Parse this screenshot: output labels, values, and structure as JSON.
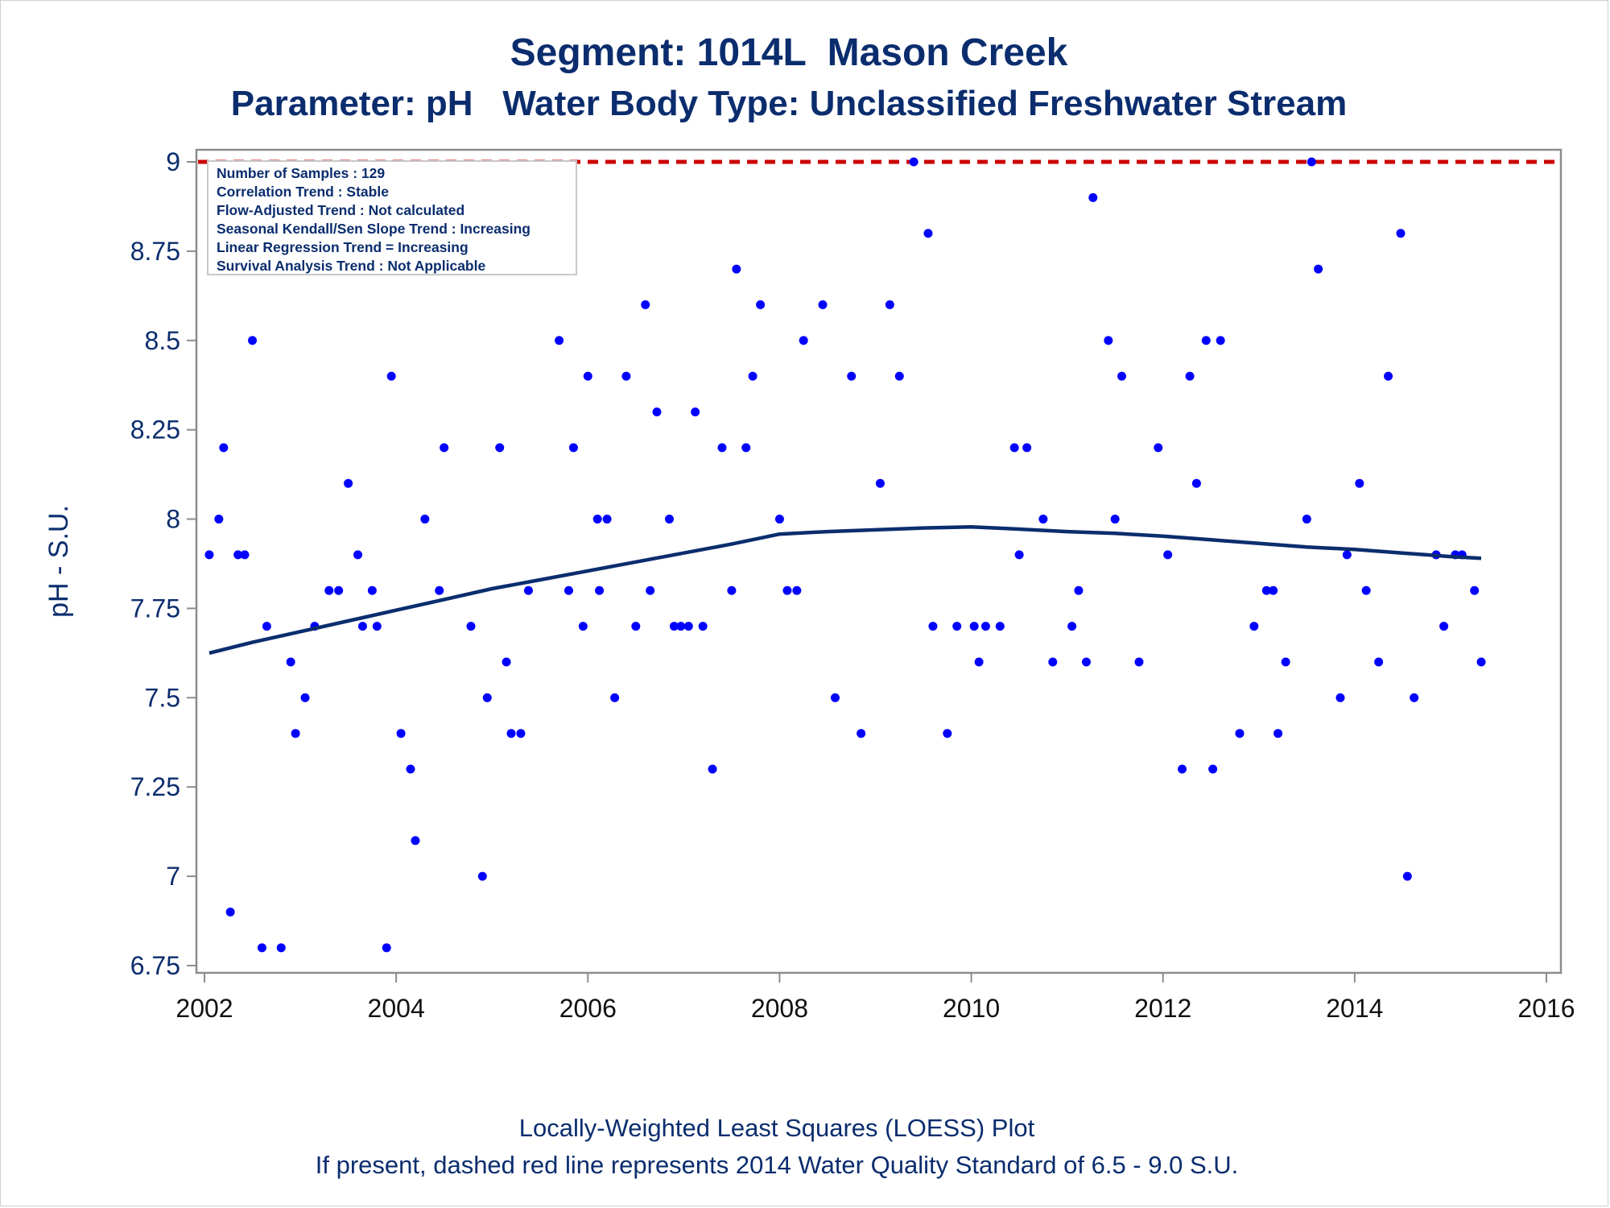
{
  "title": "Segment: 1014L  Mason Creek",
  "subtitle": "Parameter: pH   Water Body Type: Unclassified Freshwater Stream",
  "footnotes": [
    "Locally-Weighted Least Squares (LOESS) Plot",
    "If present, dashed red line represents 2014 Water Quality Standard of 6.5 - 9.0 S.U."
  ],
  "stats_box": [
    "Number of Samples : 129",
    "Correlation Trend : Stable",
    "Flow-Adjusted Trend : Not calculated",
    "Seasonal Kendall/Sen Slope Trend : Increasing",
    "Linear Regression Trend = Increasing",
    "Survival Analysis Trend : Not Applicable"
  ],
  "colors": {
    "points": "#0000ff",
    "loess": "#0b2d6e",
    "standard_line": "#cc0000",
    "text": "#0b2d6e",
    "axis": "#8c8c8c"
  },
  "chart_data": {
    "type": "scatter",
    "xlabel": "",
    "ylabel": "pH - S.U.",
    "xlim": [
      2002,
      2016
    ],
    "ylim": [
      6.75,
      9.0
    ],
    "xticks": [
      "2002",
      "2004",
      "2006",
      "2008",
      "2010",
      "2012",
      "2014",
      "2016"
    ],
    "yticks": [
      "6.75",
      "7",
      "7.25",
      "7.5",
      "7.75",
      "8",
      "8.25",
      "8.5",
      "8.75",
      "9"
    ],
    "grid": false,
    "standard_line": {
      "y": 9.0,
      "style": "dashed"
    },
    "series": [
      {
        "type": "scatter",
        "points": [
          [
            2002.05,
            7.9
          ],
          [
            2002.15,
            8.0
          ],
          [
            2002.2,
            8.2
          ],
          [
            2002.27,
            6.9
          ],
          [
            2002.35,
            7.9
          ],
          [
            2002.42,
            7.9
          ],
          [
            2002.5,
            8.5
          ],
          [
            2002.6,
            6.8
          ],
          [
            2002.65,
            7.7
          ],
          [
            2002.8,
            6.8
          ],
          [
            2002.9,
            7.6
          ],
          [
            2002.95,
            7.4
          ],
          [
            2003.05,
            7.5
          ],
          [
            2003.15,
            7.7
          ],
          [
            2003.3,
            7.8
          ],
          [
            2003.4,
            7.8
          ],
          [
            2003.5,
            8.1
          ],
          [
            2003.6,
            7.9
          ],
          [
            2003.65,
            7.7
          ],
          [
            2003.75,
            7.8
          ],
          [
            2003.8,
            7.7
          ],
          [
            2003.9,
            6.8
          ],
          [
            2003.95,
            8.4
          ],
          [
            2004.05,
            7.4
          ],
          [
            2004.15,
            7.3
          ],
          [
            2004.2,
            7.1
          ],
          [
            2004.3,
            8.0
          ],
          [
            2004.45,
            7.8
          ],
          [
            2004.5,
            8.2
          ],
          [
            2004.78,
            7.7
          ],
          [
            2004.9,
            7.0
          ],
          [
            2004.95,
            7.5
          ],
          [
            2005.08,
            8.2
          ],
          [
            2005.15,
            7.6
          ],
          [
            2005.2,
            7.4
          ],
          [
            2005.3,
            7.4
          ],
          [
            2005.38,
            7.8
          ],
          [
            2005.7,
            8.5
          ],
          [
            2005.8,
            7.8
          ],
          [
            2005.85,
            8.2
          ],
          [
            2005.95,
            7.7
          ],
          [
            2006.0,
            8.4
          ],
          [
            2006.1,
            8.0
          ],
          [
            2006.12,
            7.8
          ],
          [
            2006.2,
            8.0
          ],
          [
            2006.28,
            7.5
          ],
          [
            2006.4,
            8.4
          ],
          [
            2006.5,
            7.7
          ],
          [
            2006.6,
            8.6
          ],
          [
            2006.65,
            7.8
          ],
          [
            2006.72,
            8.3
          ],
          [
            2006.85,
            8.0
          ],
          [
            2006.9,
            7.7
          ],
          [
            2006.97,
            7.7
          ],
          [
            2007.05,
            7.7
          ],
          [
            2007.12,
            8.3
          ],
          [
            2007.2,
            7.7
          ],
          [
            2007.3,
            7.3
          ],
          [
            2007.4,
            8.2
          ],
          [
            2007.5,
            7.8
          ],
          [
            2007.55,
            8.7
          ],
          [
            2007.65,
            8.2
          ],
          [
            2007.72,
            8.4
          ],
          [
            2007.8,
            8.6
          ],
          [
            2008.0,
            8.0
          ],
          [
            2008.08,
            7.8
          ],
          [
            2008.18,
            7.8
          ],
          [
            2008.25,
            8.5
          ],
          [
            2008.45,
            8.6
          ],
          [
            2008.58,
            7.5
          ],
          [
            2008.75,
            8.4
          ],
          [
            2008.85,
            7.4
          ],
          [
            2009.05,
            8.1
          ],
          [
            2009.15,
            8.6
          ],
          [
            2009.25,
            8.4
          ],
          [
            2009.4,
            9.0
          ],
          [
            2009.55,
            8.8
          ],
          [
            2009.6,
            7.7
          ],
          [
            2009.75,
            7.4
          ],
          [
            2009.85,
            7.7
          ],
          [
            2010.03,
            7.7
          ],
          [
            2010.08,
            7.6
          ],
          [
            2010.15,
            7.7
          ],
          [
            2010.3,
            7.7
          ],
          [
            2010.45,
            8.2
          ],
          [
            2010.5,
            7.9
          ],
          [
            2010.58,
            8.2
          ],
          [
            2010.75,
            8.0
          ],
          [
            2010.85,
            7.6
          ],
          [
            2011.05,
            7.7
          ],
          [
            2011.12,
            7.8
          ],
          [
            2011.2,
            7.6
          ],
          [
            2011.27,
            8.9
          ],
          [
            2011.43,
            8.5
          ],
          [
            2011.5,
            8.0
          ],
          [
            2011.57,
            8.4
          ],
          [
            2011.75,
            7.6
          ],
          [
            2011.95,
            8.2
          ],
          [
            2012.05,
            7.9
          ],
          [
            2012.2,
            7.3
          ],
          [
            2012.28,
            8.4
          ],
          [
            2012.35,
            8.1
          ],
          [
            2012.45,
            8.5
          ],
          [
            2012.52,
            7.3
          ],
          [
            2012.6,
            8.5
          ],
          [
            2012.8,
            7.4
          ],
          [
            2012.95,
            7.7
          ],
          [
            2013.08,
            7.8
          ],
          [
            2013.15,
            7.8
          ],
          [
            2013.2,
            7.4
          ],
          [
            2013.28,
            7.6
          ],
          [
            2013.5,
            8.0
          ],
          [
            2013.55,
            9.0
          ],
          [
            2013.62,
            8.7
          ],
          [
            2013.85,
            7.5
          ],
          [
            2013.92,
            7.9
          ],
          [
            2014.05,
            8.1
          ],
          [
            2014.12,
            7.8
          ],
          [
            2014.25,
            7.6
          ],
          [
            2014.35,
            8.4
          ],
          [
            2014.48,
            8.8
          ],
          [
            2014.55,
            7.0
          ],
          [
            2014.62,
            7.5
          ],
          [
            2014.85,
            7.9
          ],
          [
            2014.93,
            7.7
          ],
          [
            2015.05,
            7.9
          ],
          [
            2015.12,
            7.9
          ],
          [
            2015.25,
            7.8
          ],
          [
            2015.32,
            7.6
          ]
        ]
      },
      {
        "type": "line",
        "points": [
          [
            2002.05,
            7.625
          ],
          [
            2002.5,
            7.655
          ],
          [
            2003.0,
            7.685
          ],
          [
            2003.5,
            7.715
          ],
          [
            2004.0,
            7.745
          ],
          [
            2004.5,
            7.775
          ],
          [
            2005.0,
            7.805
          ],
          [
            2005.5,
            7.83
          ],
          [
            2006.0,
            7.855
          ],
          [
            2006.5,
            7.88
          ],
          [
            2007.0,
            7.905
          ],
          [
            2007.5,
            7.93
          ],
          [
            2008.0,
            7.958
          ],
          [
            2008.5,
            7.965
          ],
          [
            2009.0,
            7.97
          ],
          [
            2009.5,
            7.975
          ],
          [
            2010.0,
            7.978
          ],
          [
            2010.5,
            7.972
          ],
          [
            2011.0,
            7.965
          ],
          [
            2011.5,
            7.96
          ],
          [
            2012.0,
            7.952
          ],
          [
            2012.5,
            7.942
          ],
          [
            2013.0,
            7.932
          ],
          [
            2013.5,
            7.922
          ],
          [
            2014.0,
            7.915
          ],
          [
            2014.5,
            7.905
          ],
          [
            2015.0,
            7.895
          ],
          [
            2015.32,
            7.89
          ]
        ]
      }
    ]
  }
}
